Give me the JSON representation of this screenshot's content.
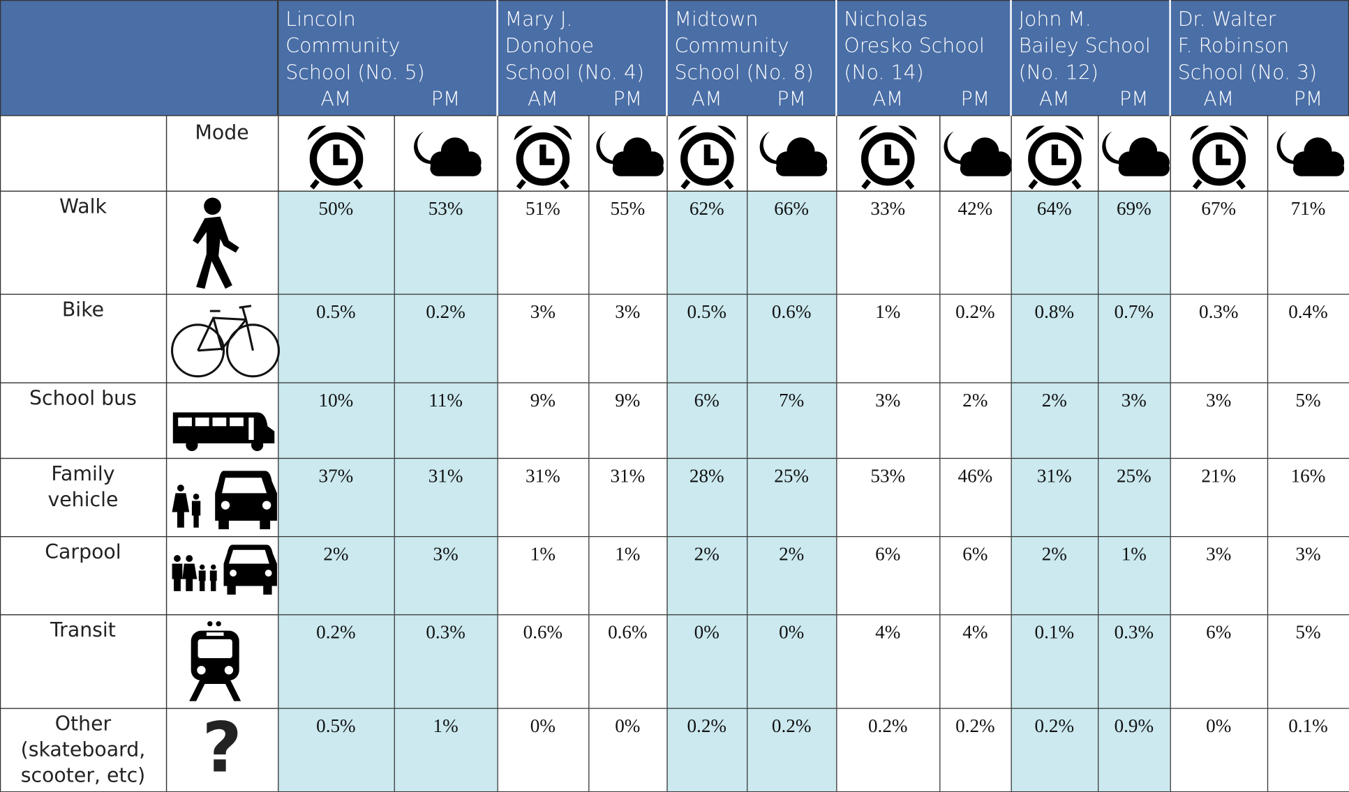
{
  "header": {
    "schools": [
      {
        "name_lines": [
          "Lincoln",
          "Community",
          "School (No. 5)"
        ]
      },
      {
        "name_lines": [
          "Mary J.",
          "Donohoe",
          "School (No. 4)"
        ]
      },
      {
        "name_lines": [
          "Midtown",
          "Community",
          "School (No. 8)"
        ]
      },
      {
        "name_lines": [
          "Nicholas",
          "Oresko School",
          "(No. 14)"
        ]
      },
      {
        "name_lines": [
          "John M.",
          "Bailey School",
          "(No. 12)"
        ]
      },
      {
        "name_lines": [
          "Dr. Walter",
          "F. Robinson",
          "School (No. 3)"
        ]
      }
    ],
    "am": "AM",
    "pm": "PM",
    "mode": "Mode"
  },
  "rows": [
    {
      "mode": [
        "Walk"
      ],
      "values": [
        "50%",
        "53%",
        "51%",
        "55%",
        "62%",
        "66%",
        "33%",
        "42%",
        "64%",
        "69%",
        "67%",
        "71%"
      ]
    },
    {
      "mode": [
        "Bike"
      ],
      "values": [
        "0.5%",
        "0.2%",
        "3%",
        "3%",
        "0.5%",
        "0.6%",
        "1%",
        "0.2%",
        "0.8%",
        "0.7%",
        "0.3%",
        "0.4%"
      ]
    },
    {
      "mode": [
        "School bus"
      ],
      "values": [
        "10%",
        "11%",
        "9%",
        "9%",
        "6%",
        "7%",
        "3%",
        "2%",
        "2%",
        "3%",
        "3%",
        "5%"
      ]
    },
    {
      "mode": [
        "Family",
        "vehicle"
      ],
      "values": [
        "37%",
        "31%",
        "31%",
        "31%",
        "28%",
        "25%",
        "53%",
        "46%",
        "31%",
        "25%",
        "21%",
        "16%"
      ]
    },
    {
      "mode": [
        "Carpool"
      ],
      "values": [
        "2%",
        "3%",
        "1%",
        "1%",
        "2%",
        "2%",
        "6%",
        "6%",
        "2%",
        "1%",
        "3%",
        "3%"
      ]
    },
    {
      "mode": [
        "Transit"
      ],
      "values": [
        "0.2%",
        "0.3%",
        "0.6%",
        "0.6%",
        "0%",
        "0%",
        "4%",
        "4%",
        "0.1%",
        "0.3%",
        "6%",
        "5%"
      ]
    },
    {
      "mode": [
        "Other",
        "(skateboard,",
        "scooter, etc)"
      ],
      "icon_text": "?",
      "values": [
        "0.5%",
        "1%",
        "0%",
        "0%",
        "0.2%",
        "0.2%",
        "0.2%",
        "0.2%",
        "0.2%",
        "0.9%",
        "0%",
        "0.1%"
      ]
    }
  ]
}
